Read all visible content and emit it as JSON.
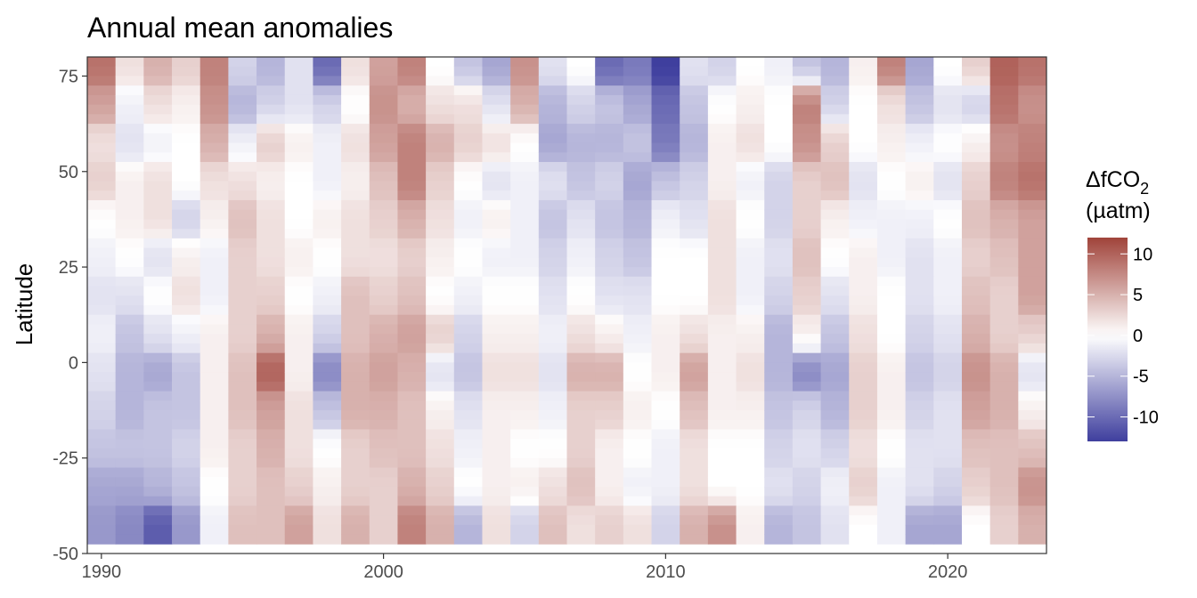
{
  "chart_data": {
    "type": "heatmap",
    "title": "Annual mean anomalies",
    "xlabel": "",
    "ylabel": "Latitude",
    "x_ticks": [
      "1990",
      "2000",
      "2010",
      "2020"
    ],
    "y_ticks": [
      "75",
      "50",
      "25",
      "0",
      "-25",
      "-50"
    ],
    "xlim": [
      1989.5,
      2023.5
    ],
    "ylim": [
      -50,
      80
    ],
    "years": [
      1990,
      1991,
      1992,
      1993,
      1994,
      1995,
      1996,
      1997,
      1998,
      1999,
      2000,
      2001,
      2002,
      2003,
      2004,
      2005,
      2006,
      2007,
      2008,
      2009,
      2010,
      2011,
      2012,
      2013,
      2014,
      2015,
      2016,
      2017,
      2018,
      2019,
      2020,
      2021,
      2022,
      2023
    ],
    "latitude_bands": [
      77.5,
      67.5,
      57.5,
      47.5,
      37.5,
      27.5,
      17.5,
      7.5,
      -2.5,
      -12.5,
      -22.5,
      -32.5,
      -42.5
    ],
    "values": [
      [
        9,
        2,
        5,
        3,
        8,
        -3,
        -5,
        -2,
        -10,
        2,
        6,
        8,
        0,
        -4,
        -6,
        7,
        -2,
        0,
        -10,
        -9,
        -13,
        -2,
        -3,
        0,
        -1,
        -4,
        -5,
        1,
        8,
        -6,
        0,
        3,
        10,
        9
      ],
      [
        6,
        -1,
        2,
        1,
        7,
        -5,
        -3,
        -2,
        -3,
        0,
        7,
        5,
        2,
        2,
        -2,
        5,
        -5,
        -3,
        -4,
        -6,
        -10,
        -4,
        0,
        1,
        0,
        8,
        -3,
        0,
        2,
        -4,
        -2,
        -3,
        9,
        7
      ],
      [
        2,
        -2,
        -1,
        0,
        5,
        -1,
        3,
        1,
        -1,
        2,
        6,
        8,
        5,
        3,
        2,
        0,
        -6,
        -5,
        -5,
        -4,
        -9,
        -5,
        1,
        2,
        0,
        7,
        3,
        0,
        1,
        -1,
        0,
        1,
        7,
        8
      ],
      [
        3,
        1,
        2,
        0,
        2,
        2,
        1,
        0,
        -1,
        1,
        4,
        8,
        3,
        0,
        -2,
        -1,
        -2,
        -4,
        -3,
        -6,
        -4,
        -3,
        1,
        -1,
        -3,
        3,
        4,
        -2,
        0,
        1,
        -2,
        3,
        8,
        9
      ],
      [
        0,
        1,
        2,
        -3,
        1,
        4,
        2,
        0,
        1,
        2,
        3,
        5,
        2,
        -1,
        1,
        -1,
        -4,
        -2,
        -4,
        -5,
        -1,
        -2,
        2,
        0,
        -3,
        3,
        1,
        -1,
        -1,
        -1,
        0,
        4,
        5,
        6
      ],
      [
        -1,
        0,
        -2,
        1,
        -1,
        3,
        2,
        1,
        0,
        2,
        2,
        3,
        1,
        0,
        -1,
        -1,
        -3,
        -1,
        -3,
        -4,
        0,
        0,
        2,
        -1,
        -2,
        4,
        0,
        1,
        -1,
        -2,
        -1,
        3,
        4,
        6
      ],
      [
        -2,
        -2,
        0,
        2,
        -1,
        3,
        3,
        0,
        -1,
        4,
        3,
        4,
        0,
        -1,
        0,
        0,
        -2,
        0,
        -2,
        -2,
        0,
        0,
        2,
        -1,
        -3,
        3,
        -2,
        1,
        0,
        -2,
        -1,
        4,
        3,
        6
      ],
      [
        -1,
        -4,
        -2,
        -1,
        1,
        3,
        5,
        1,
        -3,
        4,
        5,
        6,
        3,
        -3,
        1,
        1,
        -1,
        2,
        1,
        -1,
        1,
        2,
        1,
        1,
        -5,
        1,
        -4,
        2,
        0,
        -3,
        -2,
        5,
        3,
        3
      ],
      [
        -2,
        -5,
        -6,
        -4,
        1,
        4,
        10,
        1,
        -8,
        5,
        6,
        5,
        -2,
        -4,
        2,
        2,
        -2,
        5,
        5,
        0,
        1,
        6,
        1,
        2,
        -5,
        -8,
        -6,
        3,
        1,
        -4,
        -3,
        7,
        5,
        -2
      ],
      [
        -3,
        -5,
        -4,
        -4,
        1,
        4,
        6,
        2,
        -4,
        5,
        5,
        4,
        1,
        -2,
        1,
        1,
        -1,
        3,
        3,
        1,
        0,
        4,
        1,
        1,
        -4,
        -3,
        -5,
        3,
        1,
        -3,
        -2,
        6,
        5,
        1
      ],
      [
        -4,
        -4,
        -4,
        -3,
        1,
        3,
        5,
        2,
        0,
        3,
        4,
        4,
        2,
        -1,
        1,
        0,
        0,
        3,
        1,
        0,
        -1,
        2,
        0,
        0,
        -3,
        -2,
        -3,
        2,
        0,
        -2,
        -2,
        4,
        4,
        4
      ],
      [
        -6,
        -6,
        -5,
        -4,
        0,
        3,
        4,
        3,
        1,
        3,
        3,
        5,
        3,
        0,
        1,
        1,
        2,
        4,
        1,
        -1,
        -1,
        2,
        0,
        0,
        -2,
        -3,
        -1,
        3,
        -1,
        -2,
        -3,
        3,
        4,
        7
      ],
      [
        -7,
        -8,
        -11,
        -7,
        -1,
        4,
        4,
        6,
        2,
        5,
        3,
        8,
        5,
        -5,
        2,
        -3,
        4,
        2,
        3,
        2,
        -3,
        5,
        7,
        1,
        -5,
        -4,
        -2,
        0,
        -1,
        -6,
        -6,
        0,
        3,
        5
      ]
    ],
    "colorbar": {
      "title_line1": "ΔfCO",
      "title_sub": "2",
      "title_line2": "(µatm)",
      "ticks": [
        "10",
        "5",
        "0",
        "-5",
        "-10"
      ],
      "tick_values": [
        10,
        5,
        0,
        -5,
        -10
      ],
      "range": [
        -13,
        12
      ],
      "colors": {
        "low": "#3f3f9e",
        "mid": "#ffffff",
        "high": "#a0433a"
      }
    }
  }
}
